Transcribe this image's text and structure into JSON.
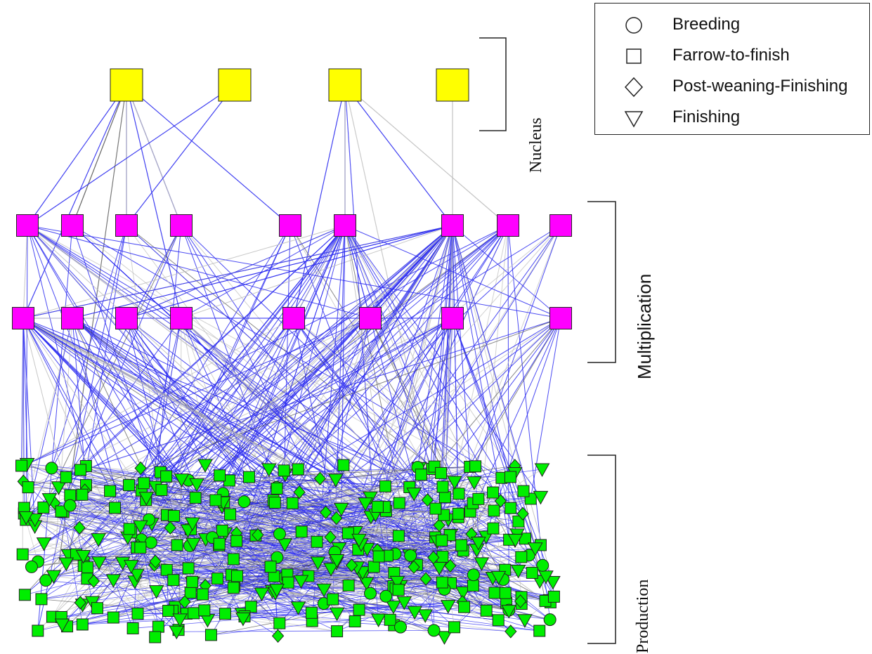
{
  "legend": {
    "items": [
      {
        "symbol": "circle-icon",
        "label": "Breeding"
      },
      {
        "symbol": "square-icon",
        "label": "Farrow-to-finish"
      },
      {
        "symbol": "diamond-icon",
        "label": "Post-weaning-Finishing"
      },
      {
        "symbol": "triangle-down-icon",
        "label": "Finishing"
      }
    ]
  },
  "tiers": {
    "nucleus": "Nucleus",
    "multiplication": "Multiplication",
    "production": "Production"
  },
  "colors": {
    "nucleus_node": "#ffff00",
    "multiplication_node": "#ff00ff",
    "production_node": "#00ee00",
    "node_outline": "#222222",
    "edge_blue": "#2b2bf0",
    "edge_grey": "#bdbdbd",
    "edge_dark": "#555555"
  }
}
